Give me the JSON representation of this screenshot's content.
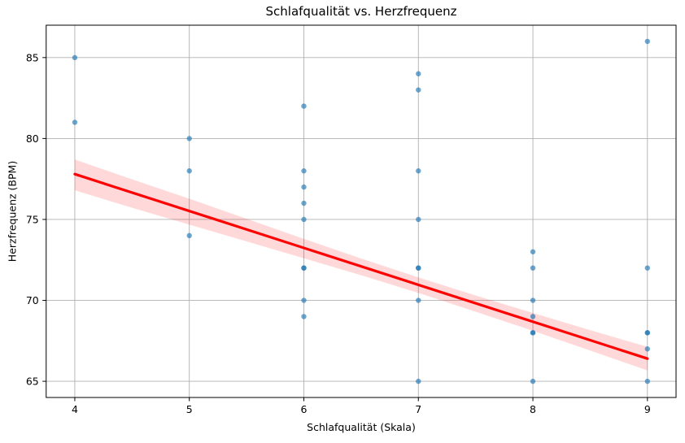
{
  "chart_data": {
    "type": "scatter",
    "title": "Schlafqualität vs. Herzfrequenz",
    "xlabel": "Schlafqualität (Skala)",
    "ylabel": "Herzfrequenz (BPM)",
    "xlim": [
      3.75,
      9.25
    ],
    "ylim": [
      64.0,
      87.0
    ],
    "x_ticks": [
      "4",
      "5",
      "6",
      "7",
      "8",
      "9"
    ],
    "x_tick_values": [
      4,
      5,
      6,
      7,
      8,
      9
    ],
    "y_ticks": [
      "65",
      "70",
      "75",
      "80",
      "85"
    ],
    "y_tick_values": [
      65,
      70,
      75,
      80,
      85
    ],
    "grid": true,
    "legend_position": "none",
    "colors": {
      "scatter": "#1f77b4",
      "regression_line": "#ff0000",
      "ci_band": "#ff0000",
      "gridline": "#b0b0b0",
      "spine": "#000000"
    },
    "points": [
      [
        4,
        85
      ],
      [
        4,
        81
      ],
      [
        5,
        80
      ],
      [
        5,
        78
      ],
      [
        5,
        74
      ],
      [
        6,
        82
      ],
      [
        6,
        78
      ],
      [
        6,
        77
      ],
      [
        6,
        76
      ],
      [
        6,
        75
      ],
      [
        6,
        72
      ],
      [
        6,
        72
      ],
      [
        6,
        70
      ],
      [
        6,
        69
      ],
      [
        7,
        84
      ],
      [
        7,
        83
      ],
      [
        7,
        78
      ],
      [
        7,
        75
      ],
      [
        7,
        72
      ],
      [
        7,
        72
      ],
      [
        7,
        70
      ],
      [
        7,
        65
      ],
      [
        8,
        73
      ],
      [
        8,
        72
      ],
      [
        8,
        70
      ],
      [
        8,
        69
      ],
      [
        8,
        68
      ],
      [
        8,
        68
      ],
      [
        8,
        65
      ],
      [
        9,
        86
      ],
      [
        9,
        72
      ],
      [
        9,
        68
      ],
      [
        9,
        68
      ],
      [
        9,
        67
      ],
      [
        9,
        65
      ]
    ],
    "regression": {
      "x": [
        4,
        9
      ],
      "y": [
        77.8,
        66.4
      ]
    },
    "ci_band": {
      "x": [
        4,
        4.5,
        5,
        5.5,
        6,
        6.5,
        7,
        7.5,
        8,
        8.5,
        9
      ],
      "upper": [
        78.7,
        77.48,
        76.28,
        75.04,
        73.8,
        72.59,
        71.42,
        70.3,
        69.22,
        68.16,
        67.13
      ],
      "lower": [
        76.8,
        75.72,
        74.68,
        73.64,
        72.6,
        71.55,
        70.46,
        69.3,
        68.12,
        66.9,
        65.67
      ]
    }
  }
}
